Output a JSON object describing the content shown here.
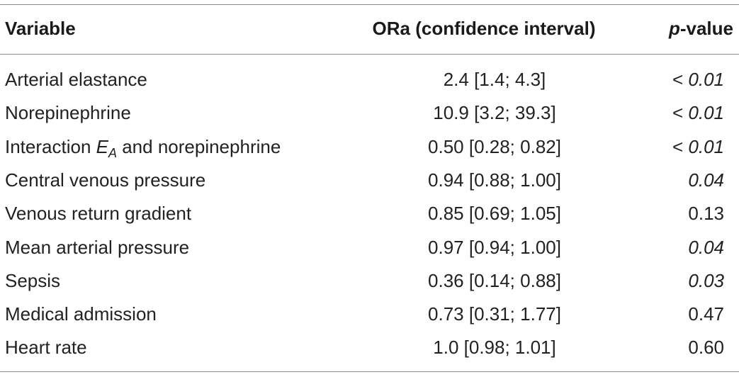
{
  "table": {
    "headers": {
      "variable": "Variable",
      "or": "ORa (confidence interval)",
      "p_italic": "p",
      "p_rest": "-value"
    },
    "rows": [
      {
        "variable": "Arterial elastance",
        "or": "2.4 [1.4; 4.3]",
        "p_prefix": "< ",
        "p": "0.01",
        "p_italic": true
      },
      {
        "variable": "Norepinephrine",
        "or": "10.9 [3.2; 39.3]",
        "p_prefix": "< ",
        "p": "0.01",
        "p_italic": true
      },
      {
        "variable_pre": "Interaction ",
        "variable_E": "E",
        "variable_sub": "A",
        "variable_post": " and norepinephrine",
        "or": "0.50 [0.28; 0.82]",
        "p_prefix": "< ",
        "p": "0.01",
        "p_italic": true
      },
      {
        "variable": "Central venous pressure",
        "or": "0.94 [0.88; 1.00]",
        "p_prefix": "",
        "p": "0.04",
        "p_italic": true
      },
      {
        "variable": "Venous return gradient",
        "or": "0.85 [0.69; 1.05]",
        "p_prefix": "",
        "p": "0.13",
        "p_italic": false
      },
      {
        "variable": "Mean arterial pressure",
        "or": "0.97 [0.94; 1.00]",
        "p_prefix": "",
        "p": "0.04",
        "p_italic": true
      },
      {
        "variable": "Sepsis",
        "or": "0.36 [0.14; 0.88]",
        "p_prefix": "",
        "p": "0.03",
        "p_italic": true
      },
      {
        "variable": "Medical admission",
        "or": "0.73 [0.31; 1.77]",
        "p_prefix": "",
        "p": "0.47",
        "p_italic": false
      },
      {
        "variable": "Heart rate",
        "or": "1.0 [0.98; 1.01]",
        "p_prefix": "",
        "p": "0.60",
        "p_italic": false
      }
    ]
  },
  "colors": {
    "text": "#222222",
    "rule": "#8a8a8a"
  }
}
